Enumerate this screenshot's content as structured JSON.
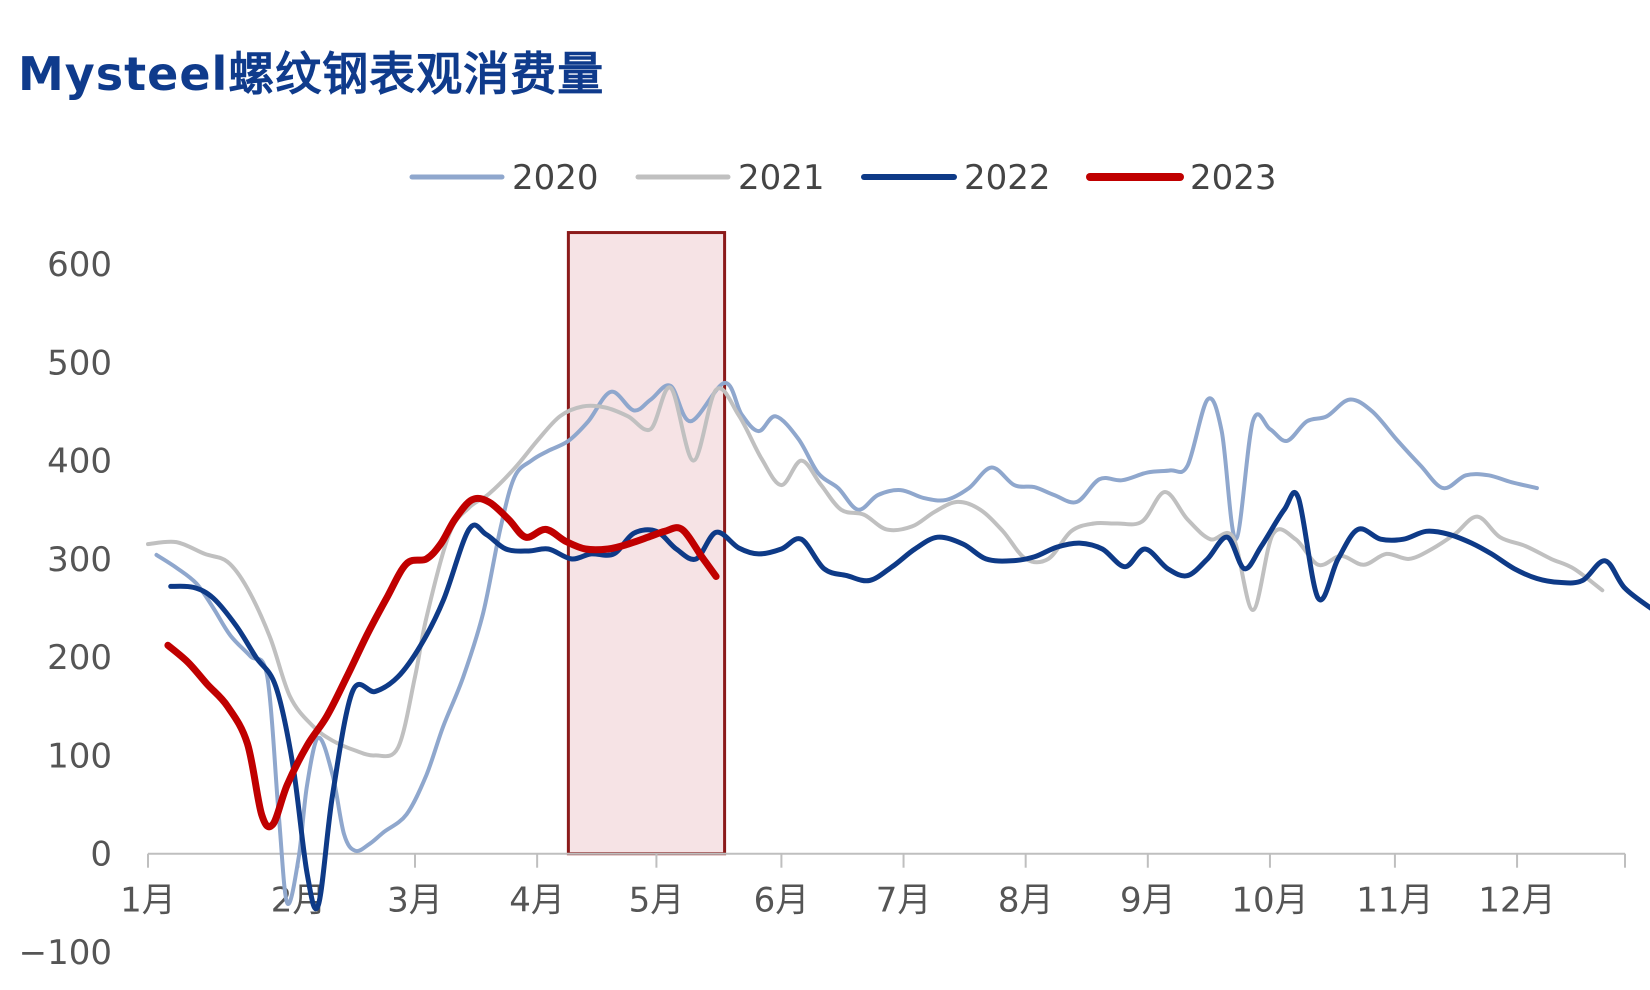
{
  "title": "Mysteel螺纹钢表观消费量",
  "chart_data": {
    "type": "line",
    "title": "Mysteel螺纹钢表观消费量",
    "xlabel": "",
    "ylabel": "",
    "ylim": [
      -100,
      600
    ],
    "yticks": [
      600,
      500,
      400,
      300,
      200,
      100,
      0,
      -100
    ],
    "xlim": [
      0,
      52
    ],
    "month_ticks": [
      "1月",
      "2月",
      "3月",
      "4月",
      "5月",
      "6月",
      "7月",
      "8月",
      "9月",
      "10月",
      "11月",
      "12月"
    ],
    "legend_position": "top",
    "grid": false,
    "highlight_box": {
      "x_start": 14.8,
      "x_end": 20.3,
      "y_start": 0,
      "y_end": 632,
      "fill": "#f6e3e5",
      "stroke": "#8b1a1a"
    },
    "series": [
      {
        "name": "2020",
        "color": "#8fa7cd",
        "width": 4,
        "points": [
          [
            0.3,
            304
          ],
          [
            1,
            291
          ],
          [
            1.7,
            275
          ],
          [
            2.3,
            250
          ],
          [
            2.9,
            222
          ],
          [
            3.6,
            201
          ],
          [
            4.2,
            180
          ],
          [
            4.6,
            40
          ],
          [
            4.9,
            -50
          ],
          [
            5.3,
            -5
          ],
          [
            5.6,
            70
          ],
          [
            6,
            118
          ],
          [
            6.5,
            80
          ],
          [
            6.9,
            20
          ],
          [
            7.3,
            3
          ],
          [
            7.8,
            10
          ],
          [
            8.3,
            22
          ],
          [
            9.1,
            40
          ],
          [
            9.8,
            80
          ],
          [
            10.4,
            130
          ],
          [
            11.1,
            180
          ],
          [
            11.8,
            245
          ],
          [
            12.4,
            330
          ],
          [
            12.9,
            383
          ],
          [
            13.5,
            400
          ],
          [
            14.1,
            410
          ],
          [
            14.8,
            420
          ],
          [
            15.5,
            440
          ],
          [
            16.3,
            470
          ],
          [
            17.1,
            451
          ],
          [
            17.7,
            462
          ],
          [
            18.4,
            476
          ],
          [
            19.1,
            440
          ],
          [
            20.3,
            479
          ],
          [
            20.9,
            447
          ],
          [
            21.5,
            430
          ],
          [
            22.1,
            445
          ],
          [
            22.9,
            422
          ],
          [
            23.6,
            387
          ],
          [
            24.3,
            372
          ],
          [
            25,
            350
          ],
          [
            25.7,
            365
          ],
          [
            26.5,
            370
          ],
          [
            27.3,
            362
          ],
          [
            28.1,
            360
          ],
          [
            28.9,
            372
          ],
          [
            29.7,
            393
          ],
          [
            30.5,
            375
          ],
          [
            31.2,
            373
          ],
          [
            31.9,
            365
          ],
          [
            32.7,
            358
          ],
          [
            33.5,
            381
          ],
          [
            34.3,
            380
          ],
          [
            35.2,
            388
          ],
          [
            36,
            390
          ],
          [
            36.6,
            395
          ],
          [
            37.3,
            462
          ],
          [
            37.8,
            430
          ],
          [
            38.3,
            320
          ],
          [
            38.9,
            440
          ],
          [
            39.5,
            432
          ],
          [
            40.1,
            420
          ],
          [
            40.8,
            440
          ],
          [
            41.5,
            445
          ],
          [
            42.3,
            462
          ],
          [
            43.1,
            450
          ],
          [
            44,
            420
          ],
          [
            44.8,
            395
          ],
          [
            45.6,
            372
          ],
          [
            46.4,
            385
          ],
          [
            47.2,
            385
          ],
          [
            48,
            378
          ],
          [
            48.9,
            372
          ]
        ]
      },
      {
        "name": "2021",
        "color": "#c0c0c0",
        "width": 4,
        "points": [
          [
            0,
            315
          ],
          [
            1,
            317
          ],
          [
            2,
            305
          ],
          [
            2.8,
            297
          ],
          [
            3.5,
            270
          ],
          [
            4.3,
            220
          ],
          [
            5,
            160
          ],
          [
            5.8,
            130
          ],
          [
            6.5,
            115
          ],
          [
            7.3,
            105
          ],
          [
            8,
            100
          ],
          [
            8.8,
            108
          ],
          [
            9.4,
            180
          ],
          [
            9.8,
            240
          ],
          [
            10.6,
            325
          ],
          [
            11.3,
            352
          ],
          [
            12,
            366
          ],
          [
            12.9,
            392
          ],
          [
            13.7,
            420
          ],
          [
            14.5,
            445
          ],
          [
            15.3,
            455
          ],
          [
            16.1,
            454
          ],
          [
            16.9,
            445
          ],
          [
            17.7,
            432
          ],
          [
            18.4,
            474
          ],
          [
            19.2,
            400
          ],
          [
            20,
            472
          ],
          [
            20.8,
            446
          ],
          [
            21.6,
            402
          ],
          [
            22.3,
            375
          ],
          [
            23,
            400
          ],
          [
            23.7,
            375
          ],
          [
            24.4,
            350
          ],
          [
            25.2,
            345
          ],
          [
            26,
            330
          ],
          [
            26.9,
            333
          ],
          [
            27.7,
            348
          ],
          [
            28.5,
            358
          ],
          [
            29.3,
            350
          ],
          [
            30.1,
            328
          ],
          [
            30.9,
            300
          ],
          [
            31.7,
            300
          ],
          [
            32.5,
            328
          ],
          [
            33.3,
            336
          ],
          [
            34.1,
            336
          ],
          [
            35,
            338
          ],
          [
            35.8,
            368
          ],
          [
            36.6,
            340
          ],
          [
            37.4,
            320
          ],
          [
            38.2,
            322
          ],
          [
            38.9,
            248
          ],
          [
            39.6,
            325
          ],
          [
            40.4,
            320
          ],
          [
            41.2,
            294
          ],
          [
            42,
            303
          ],
          [
            42.8,
            294
          ],
          [
            43.6,
            305
          ],
          [
            44.4,
            300
          ],
          [
            45.2,
            310
          ],
          [
            46,
            325
          ],
          [
            46.8,
            343
          ],
          [
            47.6,
            322
          ],
          [
            48.5,
            313
          ],
          [
            49.4,
            300
          ],
          [
            50.2,
            290
          ],
          [
            51.2,
            268
          ]
        ]
      },
      {
        "name": "2022",
        "color": "#0e3a87",
        "width": 5,
        "points": [
          [
            0.8,
            272
          ],
          [
            1.6,
            271
          ],
          [
            2.3,
            260
          ],
          [
            3.1,
            232
          ],
          [
            3.8,
            200
          ],
          [
            4.5,
            170
          ],
          [
            5.1,
            90
          ],
          [
            5.6,
            -20
          ],
          [
            6,
            -52
          ],
          [
            6.5,
            60
          ],
          [
            7.2,
            165
          ],
          [
            8,
            165
          ],
          [
            8.8,
            180
          ],
          [
            9.6,
            212
          ],
          [
            10.4,
            258
          ],
          [
            11.3,
            330
          ],
          [
            11.9,
            325
          ],
          [
            12.6,
            310
          ],
          [
            13.4,
            308
          ],
          [
            14.1,
            310
          ],
          [
            14.9,
            300
          ],
          [
            15.6,
            305
          ],
          [
            16.4,
            305
          ],
          [
            17.1,
            326
          ],
          [
            17.9,
            328
          ],
          [
            18.6,
            310
          ],
          [
            19.3,
            300
          ],
          [
            20,
            327
          ],
          [
            20.8,
            311
          ],
          [
            21.5,
            305
          ],
          [
            22.3,
            310
          ],
          [
            23,
            320
          ],
          [
            23.8,
            290
          ],
          [
            24.6,
            283
          ],
          [
            25.4,
            278
          ],
          [
            26.2,
            292
          ],
          [
            27,
            310
          ],
          [
            27.8,
            322
          ],
          [
            28.7,
            315
          ],
          [
            29.5,
            300
          ],
          [
            30.4,
            298
          ],
          [
            31.2,
            302
          ],
          [
            32,
            312
          ],
          [
            32.8,
            316
          ],
          [
            33.6,
            310
          ],
          [
            34.4,
            292
          ],
          [
            35.1,
            310
          ],
          [
            35.9,
            290
          ],
          [
            36.6,
            283
          ],
          [
            37.3,
            300
          ],
          [
            38,
            322
          ],
          [
            38.6,
            290
          ],
          [
            39.2,
            313
          ],
          [
            40,
            350
          ],
          [
            40.5,
            362
          ],
          [
            41.2,
            260
          ],
          [
            41.9,
            300
          ],
          [
            42.6,
            330
          ],
          [
            43.4,
            320
          ],
          [
            44.2,
            320
          ],
          [
            45,
            328
          ],
          [
            45.8,
            325
          ],
          [
            46.6,
            316
          ],
          [
            47.3,
            305
          ],
          [
            48.1,
            290
          ],
          [
            48.9,
            280
          ],
          [
            49.7,
            276
          ],
          [
            50.5,
            278
          ],
          [
            51.3,
            298
          ],
          [
            52,
            270
          ],
          [
            53,
            248
          ]
        ]
      },
      {
        "name": "2023",
        "color": "#c00000",
        "width": 7,
        "points": [
          [
            0.7,
            212
          ],
          [
            1.4,
            195
          ],
          [
            2.1,
            172
          ],
          [
            2.8,
            150
          ],
          [
            3.5,
            112
          ],
          [
            4,
            40
          ],
          [
            4.4,
            30
          ],
          [
            4.9,
            70
          ],
          [
            5.6,
            110
          ],
          [
            6.3,
            140
          ],
          [
            7,
            180
          ],
          [
            7.7,
            222
          ],
          [
            8.4,
            260
          ],
          [
            9.1,
            295
          ],
          [
            9.8,
            300
          ],
          [
            10.3,
            315
          ],
          [
            10.8,
            340
          ],
          [
            11.4,
            360
          ],
          [
            12,
            358
          ],
          [
            12.7,
            340
          ],
          [
            13.3,
            322
          ],
          [
            14,
            330
          ],
          [
            14.7,
            318
          ],
          [
            15.4,
            310
          ],
          [
            16.2,
            310
          ],
          [
            16.9,
            315
          ],
          [
            17.6,
            322
          ],
          [
            18.2,
            328
          ],
          [
            18.8,
            330
          ],
          [
            19.5,
            302
          ],
          [
            20,
            282
          ]
        ]
      }
    ]
  }
}
